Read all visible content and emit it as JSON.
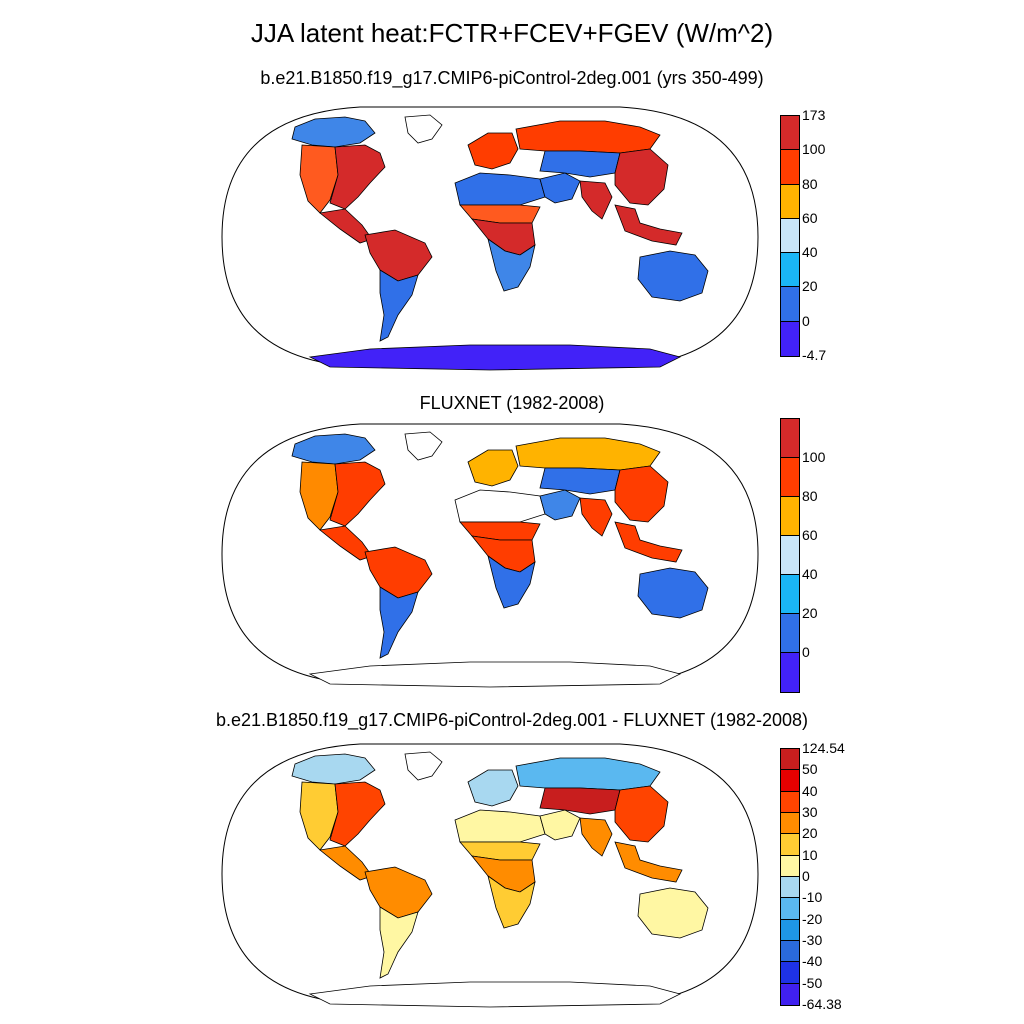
{
  "title": "JJA latent heat:FCTR+FCEV+FGEV (W/m^2)",
  "panels": [
    {
      "title": "b.e21.B1850.f19_g17.CMIP6-piControl-2deg.001 (yrs 350-499)",
      "colorbar": {
        "colors": [
          "#d42a2a",
          "#ff3d00",
          "#ffb300",
          "#c9e6f8",
          "#1ab6f6",
          "#3070e8",
          "#4222f8"
        ],
        "labels": [
          "173",
          "100",
          "80",
          "60",
          "40",
          "20",
          "0",
          "-4.7"
        ]
      },
      "regions": {
        "na_west": "#ff5a1f",
        "na_east": "#d42a2a",
        "na_north": "#3f86e8",
        "greenland": "#ffffff",
        "central_america": "#d42a2a",
        "amazon": "#d42a2a",
        "sa_south": "#3070e8",
        "sahara": "#3070e8",
        "sahel": "#ff5a1f",
        "central_africa": "#d42a2a",
        "southern_africa": "#3f86e8",
        "europe": "#ff3d00",
        "siberia": "#ff3d00",
        "middle_east": "#3070e8",
        "central_asia": "#3070e8",
        "east_asia": "#d42a2a",
        "india": "#d42a2a",
        "se_asia": "#d42a2a",
        "australia": "#3070e8",
        "antarctica": "#4222f8"
      }
    },
    {
      "title": "FLUXNET (1982-2008)",
      "colorbar": {
        "colors": [
          "#d42a2a",
          "#ff3d00",
          "#ffb300",
          "#c9e6f8",
          "#1ab6f6",
          "#3070e8",
          "#4222f8"
        ],
        "labels": [
          "100",
          "80",
          "60",
          "40",
          "20",
          "0"
        ]
      },
      "regions": {
        "na_west": "#ff8a00",
        "na_east": "#ff3d00",
        "na_north": "#3f86e8",
        "greenland": "#ffffff",
        "central_america": "#ff3d00",
        "amazon": "#ff3d00",
        "sa_south": "#3070e8",
        "sahara": "#ffffff",
        "sahel": "#ff3d00",
        "central_africa": "#ff3d00",
        "southern_africa": "#3070e8",
        "europe": "#ffb300",
        "siberia": "#ffb300",
        "middle_east": "#3f86e8",
        "central_asia": "#3070e8",
        "east_asia": "#ff3d00",
        "india": "#ff3d00",
        "se_asia": "#ff3d00",
        "australia": "#3070e8",
        "antarctica": "#ffffff"
      }
    },
    {
      "title": "b.e21.B1850.f19_g17.CMIP6-piControl-2deg.001 - FLUXNET (1982-2008)",
      "colorbar": {
        "colors": [
          "#c81e1e",
          "#e60000",
          "#ff4400",
          "#ff8c00",
          "#ffcc33",
          "#fff7a3",
          "#a8d8f0",
          "#5ab8f0",
          "#1e96e6",
          "#2a6adc",
          "#1e32e6",
          "#4020f0"
        ],
        "labels": [
          "124.54",
          "50",
          "40",
          "30",
          "20",
          "10",
          "0",
          "-10",
          "-20",
          "-30",
          "-40",
          "-50",
          "-64.38"
        ]
      },
      "regions": {
        "na_west": "#ffcc33",
        "na_east": "#ff4400",
        "na_north": "#a8d8f0",
        "greenland": "#ffffff",
        "central_america": "#ff8c00",
        "amazon": "#ff8c00",
        "sa_south": "#fff7a3",
        "sahara": "#fff7a3",
        "sahel": "#ffcc33",
        "central_africa": "#ff8c00",
        "southern_africa": "#ffcc33",
        "europe": "#a8d8f0",
        "siberia": "#5ab8f0",
        "middle_east": "#fff7a3",
        "central_asia": "#c81e1e",
        "east_asia": "#ff4400",
        "india": "#ff8c00",
        "se_asia": "#ff8c00",
        "australia": "#fff7a3",
        "antarctica": "#ffffff"
      }
    }
  ]
}
